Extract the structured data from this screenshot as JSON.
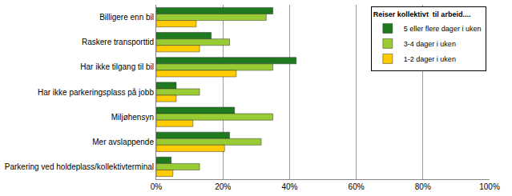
{
  "chart_data": {
    "type": "bar",
    "orientation": "horizontal",
    "categories": [
      "Billigere enn bil",
      "Raskere transporttid",
      "Har ikke tilgang til bil",
      "Har ikke parkeringsplass på jobb",
      "Miljøhensyn",
      "Mer avslappende",
      "Parkering ved holdeplass/kollektivterminal"
    ],
    "legend_title": "Reiser kollektivt  til arbeid....",
    "series": [
      {
        "name": "5 eller flere dager i uken",
        "color": "#1f7a1f",
        "values": [
          35,
          16.5,
          42,
          6,
          23.5,
          22,
          4.5
        ]
      },
      {
        "name": "3-4 dager i uken",
        "color": "#99cc33",
        "values": [
          33,
          22,
          35,
          13,
          35,
          31.5,
          13
        ]
      },
      {
        "name": "1-2 dager i uken",
        "color": "#ffcc00",
        "values": [
          12,
          13,
          24,
          6,
          11,
          20.5,
          5
        ]
      }
    ],
    "xlim": [
      0,
      100
    ],
    "xticks": [
      {
        "value": 0,
        "label": "0%"
      },
      {
        "value": 20,
        "label": "20%"
      },
      {
        "value": 40,
        "label": "40%"
      },
      {
        "value": 60,
        "label": "60%"
      },
      {
        "value": 80,
        "label": "80%"
      },
      {
        "value": 100,
        "label": "100%"
      }
    ],
    "grid": true,
    "legend": "top-right"
  }
}
